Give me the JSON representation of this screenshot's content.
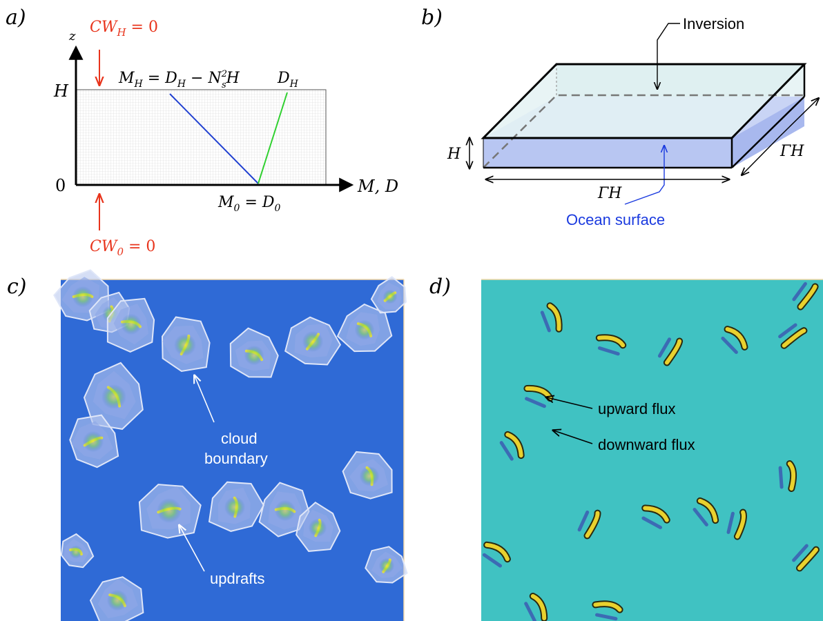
{
  "panels": {
    "a": {
      "label": "a)",
      "z_axis": "z",
      "x_axis": "M, D",
      "h_tick": "H",
      "zero_tick": "0",
      "top_bc": "CW",
      "top_bc_sub": "H",
      "top_bc_eq": " = 0",
      "bottom_bc": "CW",
      "bottom_bc_sub": "0",
      "bottom_bc_eq": " = 0",
      "mh_label_a": "M",
      "mh_label_a_sub": "H",
      "mh_label_b": " = D",
      "mh_label_b_sub": "H",
      "mh_label_c": " − N",
      "mh_label_c_sup": "2",
      "mh_label_c_sub": "s",
      "mh_label_d": "H",
      "dh_label": "D",
      "dh_label_sub": "H",
      "m0_label_a": "M",
      "m0_label_a_sub": "0",
      "m0_label_b": " = D",
      "m0_label_b_sub": "0",
      "colors": {
        "bc": "#e8341c",
        "m_line": "#1f3fd0",
        "d_line": "#2fd02f"
      }
    },
    "b": {
      "label": "b)",
      "inversion": "Inversion",
      "ocean": "Ocean surface",
      "h_dim": "H",
      "width_dim": "ΓH",
      "depth_dim": "ΓH",
      "colors": {
        "ocean_text": "#1a3adf",
        "water": "#b8c6f2",
        "top": "#e4f2f3"
      }
    },
    "c": {
      "label": "c)",
      "cloud_boundary_1": "cloud",
      "cloud_boundary_2": "boundary",
      "updrafts": "updrafts",
      "colors": {
        "background": "#2f6ad6"
      }
    },
    "d": {
      "label": "d)",
      "upward": "upward flux",
      "downward": "downward flux",
      "colors": {
        "background": "#40c2c2"
      }
    }
  }
}
